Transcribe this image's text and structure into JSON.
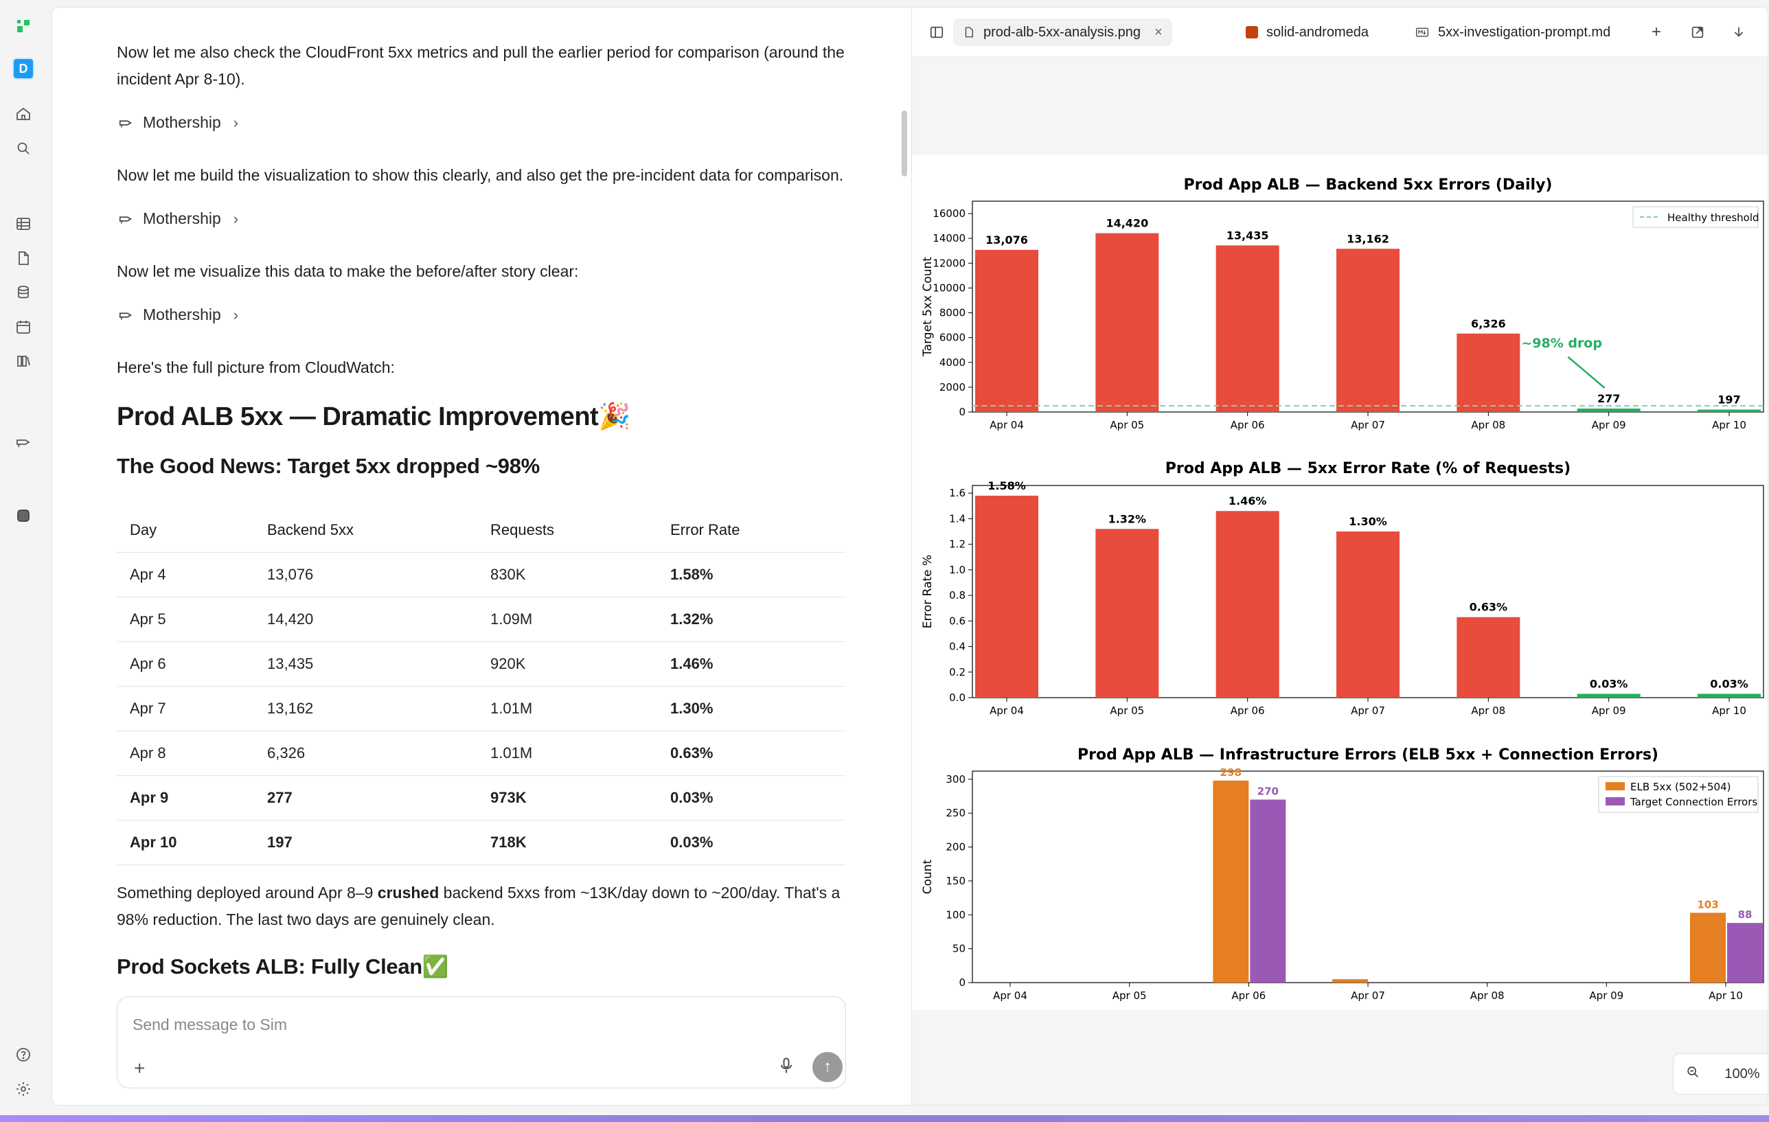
{
  "nav": {
    "icons": [
      "logo-icon",
      "home-icon",
      "search-icon",
      "table-icon",
      "document-icon",
      "database-icon",
      "calendar-icon",
      "library-icon",
      "mothership-icon",
      "stop-icon",
      "help-icon",
      "settings-icon"
    ],
    "avatar_letter": "D"
  },
  "chat": {
    "p1": "Now let me also check the CloudFront 5xx metrics and pull the earlier period for comparison (around the incident Apr 8-10).",
    "tool1": "Mothership",
    "p2": "Now let me build the visualization to show this clearly, and also get the pre-incident data for comparison.",
    "tool2": "Mothership",
    "p3": "Now let me visualize this data to make the before/after story clear:",
    "tool3": "Mothership",
    "p4": "Here's the full picture from CloudWatch:",
    "h1": "Prod ALB 5xx — Dramatic Improvement🎉",
    "h2": "The Good News: Target 5xx dropped ~98%",
    "table": {
      "headers": [
        "Day",
        "Backend 5xx",
        "Requests",
        "Error Rate"
      ],
      "rows": [
        [
          "Apr 4",
          "13,076",
          "830K",
          "1.58%"
        ],
        [
          "Apr 5",
          "14,420",
          "1.09M",
          "1.32%"
        ],
        [
          "Apr 6",
          "13,435",
          "920K",
          "1.46%"
        ],
        [
          "Apr 7",
          "13,162",
          "1.01M",
          "1.30%"
        ],
        [
          "Apr 8",
          "6,326",
          "1.01M",
          "0.63%"
        ],
        [
          "Apr 9",
          "277",
          "973K",
          "0.03%"
        ],
        [
          "Apr 10",
          "197",
          "718K",
          "0.03%"
        ]
      ]
    },
    "p5_a": "Something deployed around Apr 8–9 ",
    "p5_b": "crushed",
    "p5_c": " backend 5xxs from ~13K/day down to ~200/day. That's a 98% reduction. The last two days are genuinely clean.",
    "h3": "Prod Sockets ALB: Fully Clean✅",
    "composer_placeholder": "Send message to Sim"
  },
  "viewer": {
    "tabs": [
      {
        "label": "prod-alb-5xx-analysis.png",
        "icon": "image-file-icon"
      },
      {
        "label": "solid-andromeda",
        "icon": "app-square-icon"
      },
      {
        "label": "5xx-investigation-prompt.md",
        "icon": "markdown-file-icon"
      }
    ],
    "zoom_level": "100%"
  },
  "chart_data": [
    {
      "type": "bar",
      "title": "Prod App ALB — Backend 5xx Errors (Daily)",
      "ylabel": "Target 5xx Count",
      "categories": [
        "Apr 04",
        "Apr 05",
        "Apr 06",
        "Apr 07",
        "Apr 08",
        "Apr 09",
        "Apr 10"
      ],
      "values": [
        13076,
        14420,
        13435,
        13162,
        6326,
        277,
        197
      ],
      "labels": [
        "13,076",
        "14,420",
        "13,435",
        "13,162",
        "6,326",
        "277",
        "197"
      ],
      "ylim": [
        0,
        17000
      ],
      "yticks": [
        0,
        2000,
        4000,
        6000,
        8000,
        10000,
        12000,
        14000,
        16000
      ],
      "legend": [
        "Healthy threshold"
      ],
      "legend_position": "top-right",
      "threshold": 500,
      "annotation": "~98% drop",
      "colors": {
        "high": "#e74c3c",
        "low": "#27ae60",
        "threshold": "#7fd3b0",
        "annotation": "#27ae60"
      }
    },
    {
      "type": "bar",
      "title": "Prod App ALB — 5xx Error Rate (% of Requests)",
      "ylabel": "Error Rate %",
      "categories": [
        "Apr 04",
        "Apr 05",
        "Apr 06",
        "Apr 07",
        "Apr 08",
        "Apr 09",
        "Apr 10"
      ],
      "values": [
        1.58,
        1.32,
        1.46,
        1.3,
        0.63,
        0.03,
        0.03
      ],
      "labels": [
        "1.58%",
        "1.32%",
        "1.46%",
        "1.30%",
        "0.63%",
        "0.03%",
        "0.03%"
      ],
      "ylim": [
        0,
        1.66
      ],
      "yticks": [
        0.0,
        0.2,
        0.4,
        0.6,
        0.8,
        1.0,
        1.2,
        1.4,
        1.6
      ],
      "colors": {
        "high": "#e74c3c",
        "low": "#27ae60"
      }
    },
    {
      "type": "bar",
      "title": "Prod App ALB — Infrastructure Errors (ELB 5xx + Connection Errors)",
      "ylabel": "Count",
      "categories": [
        "Apr 04",
        "Apr 05",
        "Apr 06",
        "Apr 07",
        "Apr 08",
        "Apr 09",
        "Apr 10"
      ],
      "series": [
        {
          "name": "ELB 5xx (502+504)",
          "values": [
            0,
            0,
            298,
            5,
            0,
            0,
            103
          ],
          "color": "#e67e22"
        },
        {
          "name": "Target Connection Errors",
          "values": [
            0,
            0,
            270,
            0,
            0,
            0,
            88
          ],
          "color": "#9b59b6"
        }
      ],
      "ylim": [
        0,
        312
      ],
      "yticks": [
        0,
        50,
        100,
        150,
        200,
        250,
        300
      ],
      "legend_position": "top-right"
    }
  ]
}
